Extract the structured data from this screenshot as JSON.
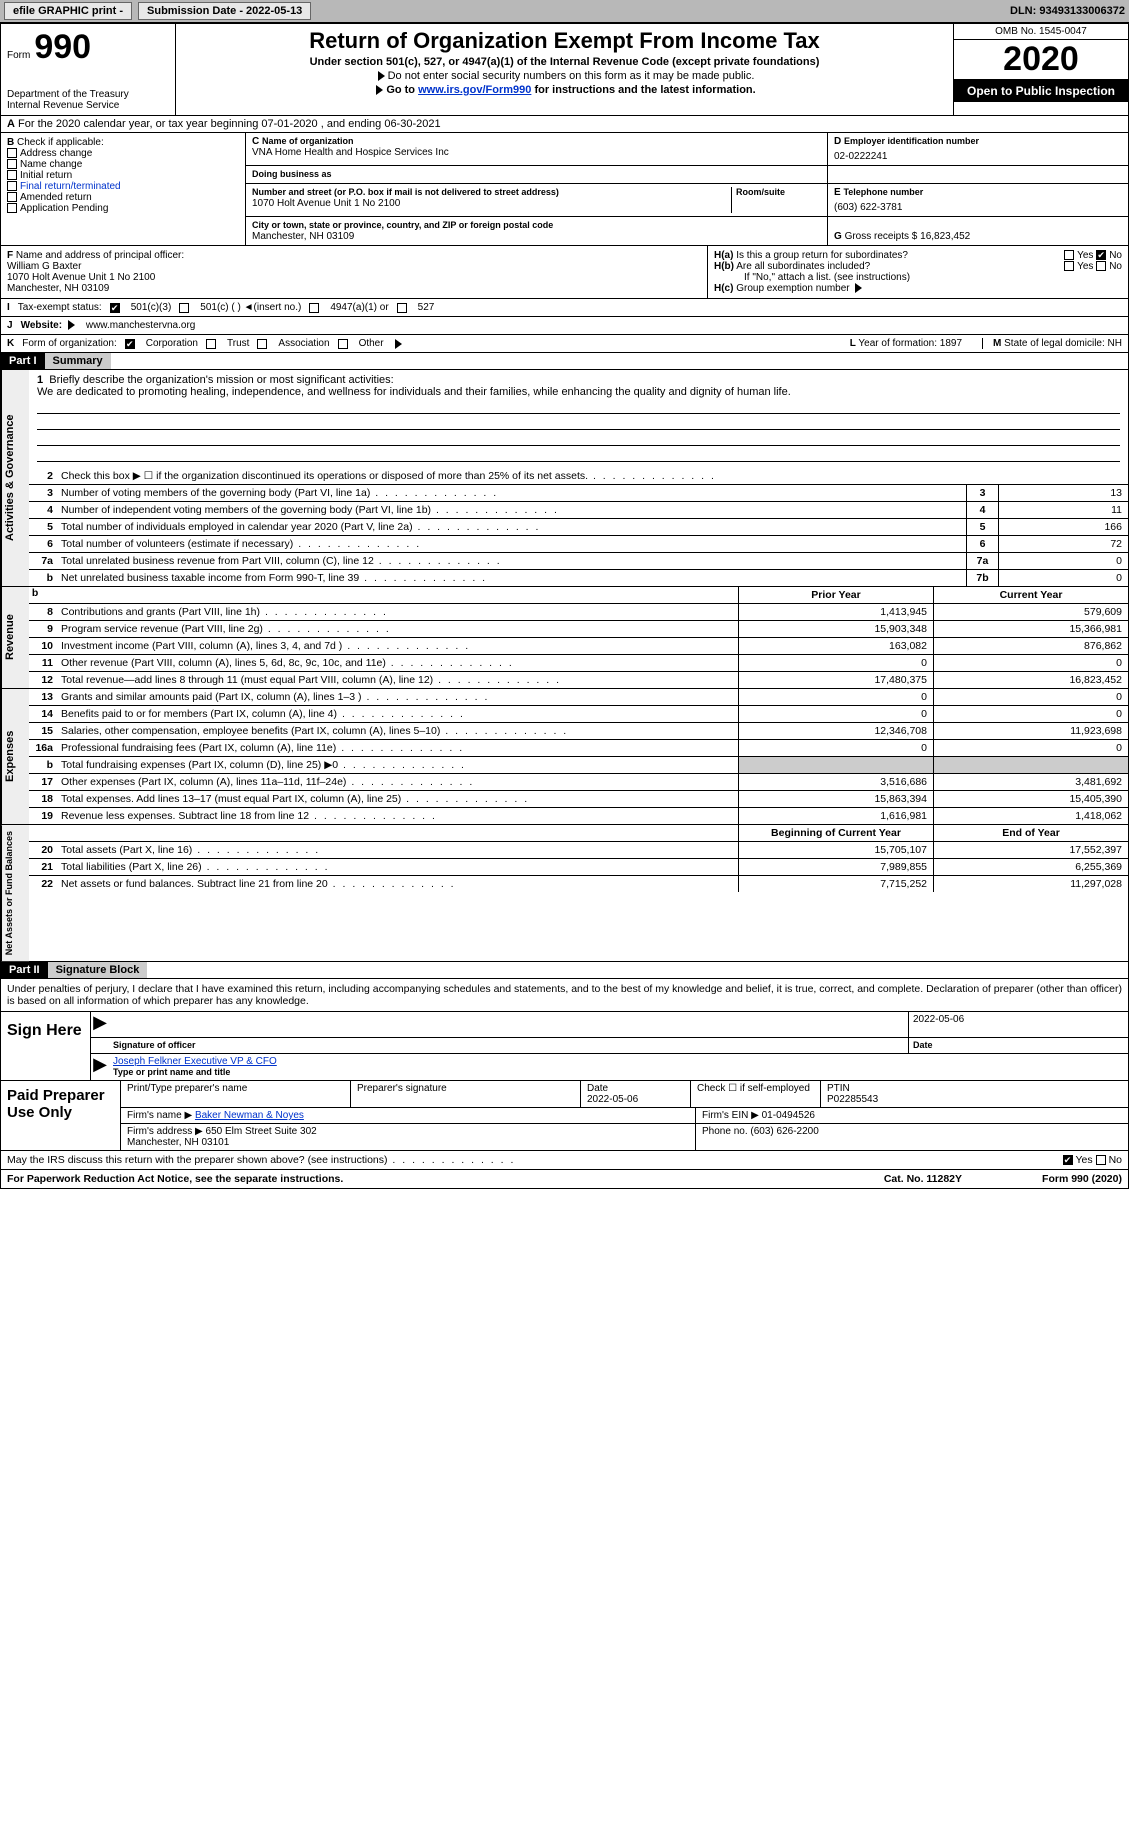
{
  "topbar": {
    "efile": "efile GRAPHIC print -",
    "submission": "Submission Date - 2022-05-13",
    "dln": "DLN: 93493133006372"
  },
  "header": {
    "form_label": "Form",
    "form_num": "990",
    "dept": "Department of the Treasury\nInternal Revenue Service",
    "title": "Return of Organization Exempt From Income Tax",
    "subtitle": "Under section 501(c), 527, or 4947(a)(1) of the Internal Revenue Code (except private foundations)",
    "note1": "Do not enter social security numbers on this form as it may be made public.",
    "note2_pre": "Go to ",
    "note2_link": "www.irs.gov/Form990",
    "note2_post": " for instructions and the latest information.",
    "omb": "OMB No. 1545-0047",
    "year": "2020",
    "open": "Open to Public Inspection"
  },
  "period": {
    "text": "For the 2020 calendar year, or tax year beginning 07-01-2020   , and ending 06-30-2021"
  },
  "B": {
    "label": "Check if applicable:",
    "items": [
      "Address change",
      "Name change",
      "Initial return",
      "Final return/terminated",
      "Amended return",
      "Application Pending"
    ]
  },
  "C": {
    "name_label": "Name of organization",
    "name": "VNA Home Health and Hospice Services Inc",
    "dba_label": "Doing business as",
    "dba": "",
    "addr_label": "Number and street (or P.O. box if mail is not delivered to street address)",
    "room_label": "Room/suite",
    "addr": "1070 Holt Avenue Unit 1 No 2100",
    "city_label": "City or town, state or province, country, and ZIP or foreign postal code",
    "city": "Manchester, NH  03109"
  },
  "D": {
    "label": "Employer identification number",
    "value": "02-0222241"
  },
  "E": {
    "label": "Telephone number",
    "value": "(603) 622-3781"
  },
  "G": {
    "label": "Gross receipts $",
    "value": "16,823,452"
  },
  "F": {
    "label": "Name and address of principal officer:",
    "name": "William G Baxter",
    "addr": "1070 Holt Avenue Unit 1 No 2100\nManchester, NH  03109"
  },
  "H": {
    "a": "Is this a group return for subordinates?",
    "b": "Are all subordinates included?",
    "note": "If \"No,\" attach a list. (see instructions)",
    "c": "Group exemption number"
  },
  "I": {
    "label": "Tax-exempt status:",
    "opts": [
      "501(c)(3)",
      "501(c) (  ) ◄(insert no.)",
      "4947(a)(1) or",
      "527"
    ]
  },
  "J": {
    "label": "Website:",
    "value": "www.manchestervna.org"
  },
  "K": {
    "label": "Form of organization:",
    "opts": [
      "Corporation",
      "Trust",
      "Association",
      "Other"
    ],
    "year_label": "Year of formation:",
    "year_val": "1897",
    "state_label": "State of legal domicile:",
    "state_val": "NH"
  },
  "part1": {
    "num": "Part I",
    "title": "Summary"
  },
  "mission": {
    "num": "1",
    "label": "Briefly describe the organization's mission or most significant activities:",
    "text": "We are dedicated to promoting healing, independence, and wellness for individuals and their families, while enhancing the quality and dignity of human life."
  },
  "gov_lines": [
    {
      "n": "2",
      "t": "Check this box ▶ ☐  if the organization discontinued its operations or disposed of more than 25% of its net assets.",
      "box": "",
      "val": ""
    },
    {
      "n": "3",
      "t": "Number of voting members of the governing body (Part VI, line 1a)",
      "box": "3",
      "val": "13"
    },
    {
      "n": "4",
      "t": "Number of independent voting members of the governing body (Part VI, line 1b)",
      "box": "4",
      "val": "11"
    },
    {
      "n": "5",
      "t": "Total number of individuals employed in calendar year 2020 (Part V, line 2a)",
      "box": "5",
      "val": "166"
    },
    {
      "n": "6",
      "t": "Total number of volunteers (estimate if necessary)",
      "box": "6",
      "val": "72"
    },
    {
      "n": "7a",
      "t": "Total unrelated business revenue from Part VIII, column (C), line 12",
      "box": "7a",
      "val": "0"
    },
    {
      "n": "b",
      "t": "Net unrelated business taxable income from Form 990-T, line 39",
      "box": "7b",
      "val": "0"
    }
  ],
  "col_hdr": {
    "prior": "Prior Year",
    "current": "Current Year",
    "begin": "Beginning of Current Year",
    "end": "End of Year"
  },
  "revenue": [
    {
      "n": "8",
      "t": "Contributions and grants (Part VIII, line 1h)",
      "p": "1,413,945",
      "c": "579,609"
    },
    {
      "n": "9",
      "t": "Program service revenue (Part VIII, line 2g)",
      "p": "15,903,348",
      "c": "15,366,981"
    },
    {
      "n": "10",
      "t": "Investment income (Part VIII, column (A), lines 3, 4, and 7d )",
      "p": "163,082",
      "c": "876,862"
    },
    {
      "n": "11",
      "t": "Other revenue (Part VIII, column (A), lines 5, 6d, 8c, 9c, 10c, and 11e)",
      "p": "0",
      "c": "0"
    },
    {
      "n": "12",
      "t": "Total revenue—add lines 8 through 11 (must equal Part VIII, column (A), line 12)",
      "p": "17,480,375",
      "c": "16,823,452"
    }
  ],
  "expenses": [
    {
      "n": "13",
      "t": "Grants and similar amounts paid (Part IX, column (A), lines 1–3 )",
      "p": "0",
      "c": "0"
    },
    {
      "n": "14",
      "t": "Benefits paid to or for members (Part IX, column (A), line 4)",
      "p": "0",
      "c": "0"
    },
    {
      "n": "15",
      "t": "Salaries, other compensation, employee benefits (Part IX, column (A), lines 5–10)",
      "p": "12,346,708",
      "c": "11,923,698"
    },
    {
      "n": "16a",
      "t": "Professional fundraising fees (Part IX, column (A), line 11e)",
      "p": "0",
      "c": "0"
    },
    {
      "n": "b",
      "t": "Total fundraising expenses (Part IX, column (D), line 25) ▶0",
      "p": "shade",
      "c": "shade"
    },
    {
      "n": "17",
      "t": "Other expenses (Part IX, column (A), lines 11a–11d, 11f–24e)",
      "p": "3,516,686",
      "c": "3,481,692"
    },
    {
      "n": "18",
      "t": "Total expenses. Add lines 13–17 (must equal Part IX, column (A), line 25)",
      "p": "15,863,394",
      "c": "15,405,390"
    },
    {
      "n": "19",
      "t": "Revenue less expenses. Subtract line 18 from line 12",
      "p": "1,616,981",
      "c": "1,418,062"
    }
  ],
  "net": [
    {
      "n": "20",
      "t": "Total assets (Part X, line 16)",
      "p": "15,705,107",
      "c": "17,552,397"
    },
    {
      "n": "21",
      "t": "Total liabilities (Part X, line 26)",
      "p": "7,989,855",
      "c": "6,255,369"
    },
    {
      "n": "22",
      "t": "Net assets or fund balances. Subtract line 21 from line 20",
      "p": "7,715,252",
      "c": "11,297,028"
    }
  ],
  "sides": {
    "gov": "Activities & Governance",
    "rev": "Revenue",
    "exp": "Expenses",
    "net": "Net Assets or Fund Balances"
  },
  "part2": {
    "num": "Part II",
    "title": "Signature Block"
  },
  "penalties": "Under penalties of perjury, I declare that I have examined this return, including accompanying schedules and statements, and to the best of my knowledge and belief, it is true, correct, and complete. Declaration of preparer (other than officer) is based on all information of which preparer has any knowledge.",
  "sign": {
    "label": "Sign Here",
    "sig_label": "Signature of officer",
    "date_label": "Date",
    "date": "2022-05-06",
    "name": "Joseph Felkner  Executive VP & CFO",
    "name_label": "Type or print name and title"
  },
  "paid": {
    "label": "Paid Preparer Use Only",
    "h": [
      "Print/Type preparer's name",
      "Preparer's signature",
      "Date",
      "Check ☐ if self-employed",
      "PTIN"
    ],
    "row1": [
      "",
      "",
      "2022-05-06",
      "",
      "P02285543"
    ],
    "firm_name_label": "Firm's name  ▶",
    "firm_name": "Baker Newman & Noyes",
    "firm_ein_label": "Firm's EIN ▶",
    "firm_ein": "01-0494526",
    "firm_addr_label": "Firm's address ▶",
    "firm_addr": "650 Elm Street Suite 302\nManchester, NH  03101",
    "phone_label": "Phone no.",
    "phone": "(603) 626-2200"
  },
  "discuss": {
    "text": "May the IRS discuss this return with the preparer shown above? (see instructions)",
    "yes": "Yes",
    "no": "No"
  },
  "footer": {
    "left": "For Paperwork Reduction Act Notice, see the separate instructions.",
    "mid": "Cat. No. 11282Y",
    "right": "Form 990 (2020)"
  }
}
